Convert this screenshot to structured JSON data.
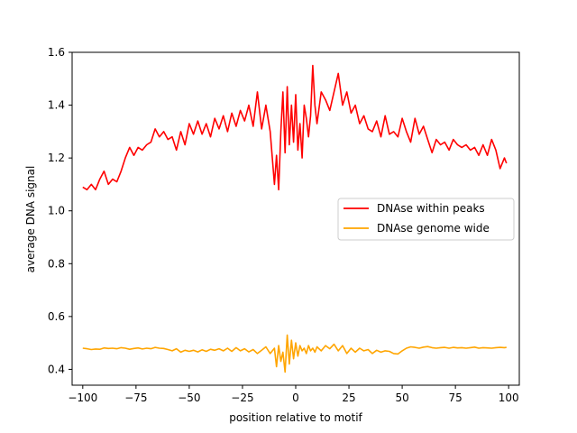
{
  "chart_data": {
    "type": "line",
    "title": "",
    "xlabel": "position relative to motif",
    "ylabel": "average DNA signal",
    "xlim": [
      -105,
      105
    ],
    "ylim": [
      0.34,
      1.6
    ],
    "xticks": [
      -100,
      -75,
      -50,
      -25,
      0,
      25,
      50,
      75,
      100
    ],
    "xtick_labels": [
      "−100",
      "−75",
      "−50",
      "−25",
      "0",
      "25",
      "50",
      "75",
      "100"
    ],
    "yticks": [
      0.4,
      0.6,
      0.8,
      1.0,
      1.2,
      1.4,
      1.6
    ],
    "ytick_labels": [
      "0.4",
      "0.6",
      "0.8",
      "1.0",
      "1.2",
      "1.4",
      "1.6"
    ],
    "grid": false,
    "legend_position": "center-right",
    "series": [
      {
        "name": "DNAse within peaks",
        "color": "#ff0000",
        "x": [
          -100,
          -98,
          -96,
          -94,
          -92,
          -90,
          -88,
          -86,
          -84,
          -82,
          -80,
          -78,
          -76,
          -74,
          -72,
          -70,
          -68,
          -66,
          -64,
          -62,
          -60,
          -58,
          -56,
          -54,
          -52,
          -50,
          -48,
          -46,
          -44,
          -42,
          -40,
          -38,
          -36,
          -34,
          -32,
          -30,
          -28,
          -26,
          -24,
          -22,
          -20,
          -18,
          -16,
          -14,
          -12,
          -10,
          -9,
          -8,
          -7,
          -6,
          -5,
          -4,
          -3,
          -2,
          -1,
          0,
          1,
          2,
          3,
          4,
          5,
          6,
          7,
          8,
          9,
          10,
          12,
          14,
          16,
          18,
          20,
          22,
          24,
          26,
          28,
          30,
          32,
          34,
          36,
          38,
          40,
          42,
          44,
          46,
          48,
          50,
          52,
          54,
          56,
          58,
          60,
          62,
          64,
          66,
          68,
          70,
          72,
          74,
          76,
          78,
          80,
          82,
          84,
          86,
          88,
          90,
          92,
          94,
          96,
          98,
          99
        ],
        "y": [
          1.09,
          1.08,
          1.1,
          1.08,
          1.12,
          1.15,
          1.1,
          1.12,
          1.11,
          1.15,
          1.2,
          1.24,
          1.21,
          1.24,
          1.23,
          1.25,
          1.26,
          1.31,
          1.28,
          1.3,
          1.27,
          1.28,
          1.23,
          1.3,
          1.25,
          1.33,
          1.29,
          1.34,
          1.29,
          1.33,
          1.28,
          1.35,
          1.31,
          1.36,
          1.3,
          1.37,
          1.32,
          1.38,
          1.34,
          1.4,
          1.32,
          1.45,
          1.31,
          1.4,
          1.3,
          1.1,
          1.21,
          1.08,
          1.3,
          1.45,
          1.22,
          1.47,
          1.25,
          1.4,
          1.26,
          1.44,
          1.23,
          1.33,
          1.2,
          1.4,
          1.35,
          1.28,
          1.36,
          1.55,
          1.4,
          1.33,
          1.45,
          1.42,
          1.38,
          1.45,
          1.52,
          1.4,
          1.45,
          1.37,
          1.4,
          1.33,
          1.36,
          1.31,
          1.3,
          1.34,
          1.28,
          1.36,
          1.29,
          1.3,
          1.28,
          1.35,
          1.3,
          1.26,
          1.35,
          1.29,
          1.32,
          1.27,
          1.22,
          1.27,
          1.25,
          1.26,
          1.23,
          1.27,
          1.25,
          1.24,
          1.25,
          1.23,
          1.24,
          1.21,
          1.25,
          1.21,
          1.27,
          1.23,
          1.16,
          1.2,
          1.18
        ]
      },
      {
        "name": "DNAse genome wide",
        "color": "#ffa500",
        "x": [
          -100,
          -98,
          -96,
          -94,
          -92,
          -90,
          -88,
          -86,
          -84,
          -82,
          -80,
          -78,
          -76,
          -74,
          -72,
          -70,
          -68,
          -66,
          -64,
          -62,
          -60,
          -58,
          -56,
          -54,
          -52,
          -50,
          -48,
          -46,
          -44,
          -42,
          -40,
          -38,
          -36,
          -34,
          -32,
          -30,
          -28,
          -26,
          -24,
          -22,
          -20,
          -18,
          -16,
          -14,
          -12,
          -10,
          -9,
          -8,
          -7,
          -6,
          -5,
          -4,
          -3,
          -2,
          -1,
          0,
          1,
          2,
          3,
          4,
          5,
          6,
          7,
          8,
          9,
          10,
          12,
          14,
          16,
          18,
          20,
          22,
          24,
          26,
          28,
          30,
          32,
          34,
          36,
          38,
          40,
          42,
          44,
          46,
          48,
          50,
          52,
          54,
          56,
          58,
          60,
          62,
          64,
          66,
          68,
          70,
          72,
          74,
          76,
          78,
          80,
          82,
          84,
          86,
          88,
          90,
          92,
          94,
          96,
          98,
          99
        ],
        "y": [
          0.48,
          0.478,
          0.475,
          0.477,
          0.476,
          0.481,
          0.479,
          0.48,
          0.478,
          0.482,
          0.48,
          0.476,
          0.479,
          0.481,
          0.477,
          0.48,
          0.478,
          0.483,
          0.48,
          0.479,
          0.475,
          0.47,
          0.478,
          0.465,
          0.472,
          0.468,
          0.472,
          0.466,
          0.474,
          0.468,
          0.476,
          0.472,
          0.478,
          0.47,
          0.48,
          0.468,
          0.482,
          0.47,
          0.478,
          0.466,
          0.475,
          0.46,
          0.472,
          0.485,
          0.46,
          0.48,
          0.41,
          0.49,
          0.43,
          0.465,
          0.39,
          0.53,
          0.42,
          0.51,
          0.44,
          0.5,
          0.45,
          0.49,
          0.47,
          0.48,
          0.46,
          0.49,
          0.47,
          0.48,
          0.465,
          0.485,
          0.47,
          0.49,
          0.478,
          0.495,
          0.47,
          0.49,
          0.46,
          0.48,
          0.465,
          0.48,
          0.47,
          0.475,
          0.46,
          0.472,
          0.465,
          0.47,
          0.468,
          0.46,
          0.458,
          0.47,
          0.48,
          0.485,
          0.483,
          0.48,
          0.484,
          0.486,
          0.482,
          0.48,
          0.482,
          0.483,
          0.48,
          0.483,
          0.481,
          0.482,
          0.48,
          0.482,
          0.484,
          0.48,
          0.482,
          0.481,
          0.48,
          0.482,
          0.483,
          0.482,
          0.483
        ]
      }
    ]
  }
}
